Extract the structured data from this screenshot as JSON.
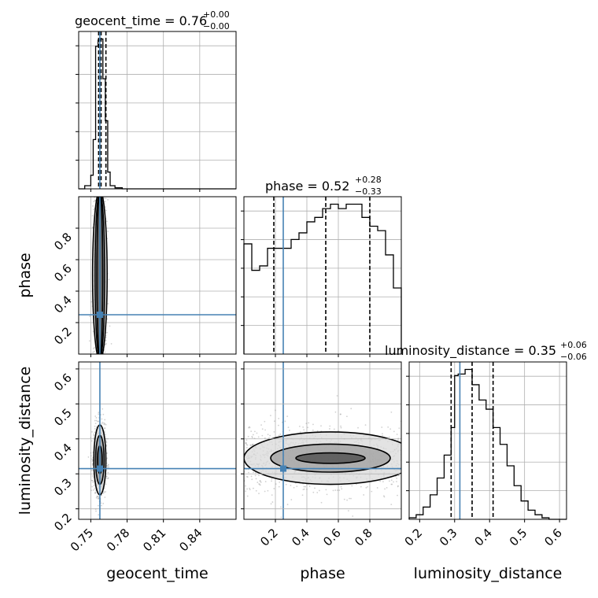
{
  "chart_data": {
    "type": "corner",
    "colors": {
      "truth": "#4682b4",
      "hist": "#000000",
      "grid": "#b0b0b0",
      "density_dark": "#1a1a1a",
      "scatter": "#999999"
    },
    "parameters": [
      {
        "name": "geocent_time",
        "axis_label": "geocent_time",
        "range": [
          0.74,
          0.87
        ],
        "ticks": [
          0.75,
          0.78,
          0.81,
          0.84
        ],
        "tick_labels": [
          "0.75",
          "0.78",
          "0.81",
          "0.84"
        ],
        "title_lhs": "geocent_time = 0.76",
        "title_plus": "+0.00",
        "title_minus": "−0.00",
        "truth": 0.7575,
        "quantiles": [
          0.7565,
          0.7585,
          0.7625
        ],
        "hist_edges": [
          0.74,
          0.745,
          0.75,
          0.752,
          0.754,
          0.756,
          0.758,
          0.76,
          0.762,
          0.764,
          0.766,
          0.77,
          0.776,
          0.78,
          0.87
        ],
        "hist_counts": [
          0,
          3,
          13,
          47,
          136,
          142,
          143,
          105,
          65,
          16,
          3,
          1,
          0,
          0
        ]
      },
      {
        "name": "phase",
        "axis_label": "phase",
        "range": [
          0.0,
          1.0
        ],
        "ticks": [
          0.2,
          0.4,
          0.6,
          0.8
        ],
        "tick_labels": [
          "0.2",
          "0.4",
          "0.6",
          "0.8"
        ],
        "title_lhs": "phase = 0.52",
        "title_plus": "+0.28",
        "title_minus": "−0.33",
        "truth": 0.25,
        "quantiles": [
          0.19,
          0.52,
          0.8
        ],
        "hist_edges": [
          0.0,
          0.05,
          0.1,
          0.15,
          0.2,
          0.25,
          0.3,
          0.35,
          0.4,
          0.45,
          0.5,
          0.55,
          0.6,
          0.65,
          0.7,
          0.75,
          0.8,
          0.85,
          0.9,
          0.95,
          1.0
        ],
        "hist_counts": [
          0.5,
          0.38,
          0.4,
          0.48,
          0.48,
          0.48,
          0.52,
          0.55,
          0.6,
          0.62,
          0.66,
          0.68,
          0.66,
          0.68,
          0.68,
          0.62,
          0.58,
          0.56,
          0.45,
          0.3
        ]
      },
      {
        "name": "luminosity_distance",
        "axis_label": "luminosity_distance",
        "range": [
          0.17,
          0.62
        ],
        "ticks": [
          0.2,
          0.3,
          0.4,
          0.5,
          0.6
        ],
        "tick_labels": [
          "0.2",
          "0.3",
          "0.4",
          "0.5",
          "0.6"
        ],
        "title_lhs": "luminosity_distance = 0.35",
        "title_plus": "+0.06",
        "title_minus": "−0.06",
        "truth": 0.315,
        "quantiles": [
          0.29,
          0.35,
          0.41
        ],
        "hist_edges": [
          0.17,
          0.19,
          0.21,
          0.23,
          0.25,
          0.27,
          0.29,
          0.3,
          0.31,
          0.33,
          0.35,
          0.37,
          0.39,
          0.41,
          0.43,
          0.45,
          0.47,
          0.49,
          0.51,
          0.53,
          0.55,
          0.57,
          0.59,
          0.62
        ],
        "hist_counts": [
          1,
          3,
          8,
          16,
          27,
          42,
          60,
          94,
          95,
          98,
          88,
          78,
          72,
          60,
          49,
          35,
          22,
          12,
          6,
          3,
          1,
          0,
          0
        ]
      }
    ],
    "panels_2d": [
      {
        "x": "geocent_time",
        "y": "phase",
        "ylim": [
          0.0,
          1.0
        ],
        "yticks": [
          0.2,
          0.4,
          0.6,
          0.8
        ],
        "ytick_labels": [
          "0.2",
          "0.4",
          "0.6",
          "0.8"
        ],
        "center": [
          0.7575,
          0.5
        ],
        "spread": [
          0.0025,
          0.5
        ],
        "contour_halfwidths": [
          [
            0.0025,
            0.52
          ],
          [
            0.004,
            0.53
          ],
          [
            0.006,
            0.54
          ]
        ],
        "truth": [
          0.7575,
          0.25
        ]
      },
      {
        "x": "geocent_time",
        "y": "luminosity_distance",
        "ylim": [
          0.17,
          0.62
        ],
        "yticks": [
          0.2,
          0.3,
          0.4,
          0.5,
          0.6
        ],
        "ytick_labels": [
          "0.2",
          "0.3",
          "0.4",
          "0.5",
          "0.6"
        ],
        "center": [
          0.7575,
          0.34
        ],
        "spread": [
          0.0025,
          0.05
        ],
        "contour_halfwidths": [
          [
            0.002,
            0.04
          ],
          [
            0.0035,
            0.07
          ],
          [
            0.005,
            0.1
          ]
        ],
        "truth": [
          0.7575,
          0.315
        ]
      },
      {
        "x": "phase",
        "y": "luminosity_distance",
        "ylim": [
          0.17,
          0.62
        ],
        "yticks": [],
        "ytick_labels": [],
        "center": [
          0.55,
          0.345
        ],
        "spread": [
          0.5,
          0.05
        ],
        "contour_halfwidths": [
          [
            0.22,
            0.015
          ],
          [
            0.38,
            0.04
          ],
          [
            0.55,
            0.075
          ]
        ],
        "truth": [
          0.25,
          0.315
        ]
      }
    ]
  }
}
